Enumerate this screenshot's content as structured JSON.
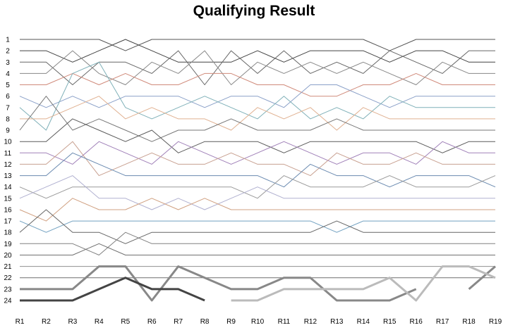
{
  "chart_data": {
    "type": "line",
    "title": "Qualifying Result",
    "xlabel": "",
    "ylabel": "",
    "categories": [
      "R1",
      "R2",
      "R3",
      "R4",
      "R5",
      "R6",
      "R7",
      "R8",
      "R9",
      "R10",
      "R11",
      "R12",
      "R13",
      "R14",
      "R15",
      "R16",
      "R17",
      "R18",
      "R19"
    ],
    "y_ticks": [
      1,
      2,
      3,
      4,
      5,
      6,
      7,
      8,
      9,
      10,
      11,
      12,
      13,
      14,
      15,
      16,
      17,
      18,
      19,
      20,
      21,
      22,
      23,
      24
    ],
    "ylim": [
      1,
      24
    ],
    "y_inverted": true,
    "grid": false,
    "legend": "none",
    "series": [
      {
        "color": "#555555",
        "width": 1,
        "values": [
          1,
          1,
          1,
          1,
          2,
          1,
          1,
          1,
          1,
          1,
          1,
          1,
          1,
          1,
          2,
          1,
          1,
          1,
          1
        ]
      },
      {
        "color": "#444444",
        "width": 1,
        "values": [
          2,
          2,
          3,
          2,
          1,
          2,
          3,
          3,
          3,
          2,
          3,
          2,
          2,
          2,
          3,
          2,
          2,
          3,
          3
        ]
      },
      {
        "color": "#666666",
        "width": 1,
        "values": [
          3,
          3,
          5,
          3,
          3,
          4,
          2,
          5,
          2,
          4,
          2,
          4,
          3,
          4,
          2,
          3,
          4,
          2,
          2
        ]
      },
      {
        "color": "#888888",
        "width": 1,
        "values": [
          4,
          4,
          2,
          4,
          5,
          3,
          4,
          2,
          5,
          3,
          4,
          3,
          4,
          3,
          4,
          5,
          3,
          4,
          4
        ]
      },
      {
        "color": "#d08a7a",
        "width": 1,
        "values": [
          5,
          5,
          4,
          5,
          4,
          5,
          5,
          4,
          4,
          5,
          5,
          6,
          6,
          5,
          5,
          4,
          5,
          5,
          5
        ]
      },
      {
        "color": "#8aa0c8",
        "width": 1,
        "values": [
          6,
          7,
          6,
          7,
          6,
          6,
          6,
          7,
          6,
          6,
          7,
          5,
          5,
          6,
          7,
          6,
          6,
          6,
          6
        ]
      },
      {
        "color": "#7fb0b8",
        "width": 1,
        "values": [
          7,
          9,
          4,
          3,
          7,
          8,
          7,
          6,
          7,
          8,
          6,
          8,
          7,
          8,
          6,
          7,
          7,
          7,
          7
        ]
      },
      {
        "color": "#e0b090",
        "width": 1,
        "values": [
          8,
          8,
          7,
          6,
          8,
          7,
          8,
          8,
          9,
          7,
          8,
          7,
          9,
          7,
          8,
          8,
          8,
          8,
          8
        ]
      },
      {
        "color": "#777777",
        "width": 1,
        "values": [
          9,
          6,
          9,
          8,
          9,
          10,
          9,
          9,
          8,
          9,
          9,
          9,
          8,
          9,
          9,
          9,
          9,
          9,
          9
        ]
      },
      {
        "color": "#5a5a5a",
        "width": 1,
        "values": [
          10,
          10,
          8,
          9,
          10,
          9,
          11,
          10,
          10,
          10,
          11,
          10,
          10,
          10,
          10,
          10,
          11,
          10,
          10
        ]
      },
      {
        "color": "#a080b8",
        "width": 1,
        "values": [
          11,
          11,
          12,
          10,
          11,
          12,
          10,
          11,
          12,
          11,
          10,
          11,
          12,
          11,
          11,
          12,
          10,
          11,
          11
        ]
      },
      {
        "color": "#c8a090",
        "width": 1,
        "values": [
          12,
          12,
          10,
          13,
          12,
          11,
          12,
          12,
          11,
          12,
          12,
          13,
          11,
          12,
          12,
          11,
          12,
          12,
          12
        ]
      },
      {
        "color": "#6a8ab0",
        "width": 1,
        "values": [
          13,
          13,
          11,
          12,
          13,
          13,
          13,
          13,
          13,
          13,
          14,
          12,
          13,
          13,
          14,
          13,
          13,
          13,
          14
        ]
      },
      {
        "color": "#999999",
        "width": 1,
        "values": [
          14,
          15,
          14,
          14,
          14,
          14,
          14,
          14,
          14,
          15,
          13,
          14,
          14,
          14,
          13,
          14,
          14,
          14,
          13
        ]
      },
      {
        "color": "#b0b0d0",
        "width": 1,
        "values": [
          15,
          14,
          13,
          15,
          15,
          16,
          15,
          16,
          15,
          14,
          15,
          15,
          15,
          15,
          15,
          15,
          15,
          15,
          15
        ]
      },
      {
        "color": "#d0a080",
        "width": 1,
        "values": [
          16,
          17,
          15,
          16,
          16,
          15,
          16,
          15,
          16,
          16,
          16,
          16,
          16,
          16,
          16,
          16,
          16,
          16,
          16
        ]
      },
      {
        "color": "#70a0c0",
        "width": 1,
        "values": [
          17,
          18,
          17,
          17,
          17,
          17,
          17,
          17,
          17,
          17,
          17,
          17,
          18,
          17,
          17,
          17,
          17,
          17,
          17
        ]
      },
      {
        "color": "#666666",
        "width": 1,
        "values": [
          18,
          16,
          18,
          18,
          19,
          18,
          18,
          18,
          18,
          18,
          18,
          18,
          17,
          18,
          18,
          18,
          18,
          18,
          18
        ]
      },
      {
        "color": "#808080",
        "width": 1,
        "values": [
          19,
          19,
          19,
          20,
          18,
          19,
          19,
          19,
          19,
          19,
          19,
          19,
          19,
          19,
          19,
          19,
          19,
          19,
          19
        ]
      },
      {
        "color": "#707070",
        "width": 1,
        "values": [
          20,
          20,
          20,
          19,
          20,
          20,
          20,
          20,
          20,
          20,
          20,
          20,
          20,
          20,
          20,
          20,
          20,
          20,
          20
        ]
      },
      {
        "color": "#909090",
        "width": 1,
        "values": [
          21,
          21,
          21,
          21,
          21,
          21,
          21,
          21,
          21,
          21,
          21,
          21,
          21,
          21,
          21,
          21,
          21,
          21,
          21
        ]
      },
      {
        "color": "#6e6e6e",
        "width": 1,
        "values": [
          22,
          22,
          22,
          22,
          22,
          22,
          22,
          22,
          22,
          22,
          22,
          22,
          22,
          22,
          22,
          22,
          22,
          22,
          22
        ]
      },
      {
        "color": "#888888",
        "width": 3,
        "values": [
          23,
          23,
          23,
          21,
          21,
          24,
          21,
          22,
          23,
          23,
          22,
          22,
          24,
          24,
          24,
          23,
          null,
          23,
          21
        ]
      },
      {
        "color": "#444444",
        "width": 3,
        "values": [
          24,
          24,
          24,
          23,
          22,
          23,
          23,
          24,
          null,
          null,
          null,
          null,
          null,
          null,
          null,
          null,
          null,
          null,
          null
        ]
      },
      {
        "color": "#bbbbbb",
        "width": 3,
        "values": [
          null,
          null,
          null,
          null,
          null,
          null,
          null,
          null,
          24,
          24,
          23,
          23,
          23,
          23,
          22,
          24,
          21,
          21,
          22
        ]
      }
    ]
  }
}
